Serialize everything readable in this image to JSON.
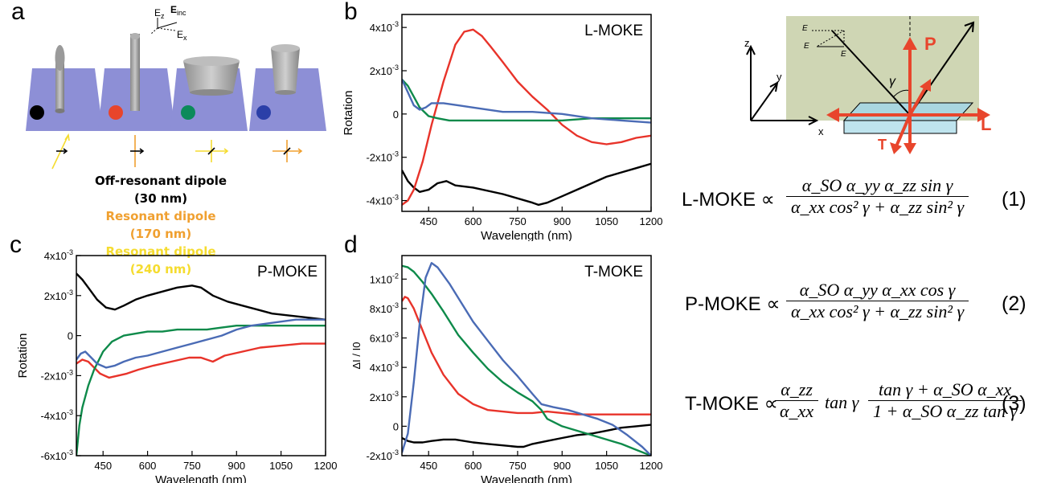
{
  "panels": {
    "a": "a",
    "b": "b",
    "c": "c",
    "d": "d"
  },
  "panel_a": {
    "axis_labels": {
      "ez": "E",
      "ez_sub": "z",
      "einc": "E",
      "einc_sub": "inc",
      "ex": "E",
      "ex_sub": "x"
    },
    "legend": [
      {
        "text": "Off-resonant dipole (30 nm)",
        "color": "#000000"
      },
      {
        "text": "Resonant dipole (170 nm)",
        "color": "#f0a030"
      },
      {
        "text": "Resonant dipole (240 nm)",
        "color": "#f5dc30"
      }
    ],
    "dot_colors": [
      "#000000",
      "#e8452c",
      "#0b8a5a",
      "#2b3fa8"
    ]
  },
  "geometry_diagram": {
    "axis_z": "z",
    "axis_y": "y",
    "axis_x": "x",
    "label_P": "P",
    "label_L": "L",
    "label_T": "T",
    "gamma": "γ",
    "vec_Ex": "E",
    "vec_E": "E",
    "vec_Ez": "E"
  },
  "equations": [
    {
      "lhs": "L-MOKE ∝",
      "numerator": "α_SO α_yy α_zz sin γ",
      "denominator": "α_xx cos² γ + α_zz sin² γ",
      "number": "(1)"
    },
    {
      "lhs": "P-MOKE ∝",
      "numerator": "α_SO α_yy α_xx cos γ",
      "denominator": "α_xx cos² γ + α_zz sin² γ",
      "number": "(2)"
    },
    {
      "lhs": "T-MOKE ∝",
      "numerator": "α_zz",
      "denominator": "α_xx",
      "mid": "tan γ",
      "numerator2": "tan γ + α_SO α_xx",
      "denominator2": "1 + α_SO α_zz tan γ",
      "number": "(3)"
    }
  ],
  "colors": {
    "black": "#000000",
    "red": "#e8332a",
    "green": "#0e8a4a",
    "blue": "#4a6bb5"
  },
  "chart_data": [
    {
      "id": "b",
      "type": "line",
      "title": "L-MOKE",
      "xlabel": "Wavelength (nm)",
      "ylabel": "Rotation",
      "xlim": [
        360,
        1200
      ],
      "ylim": [
        -0.0045,
        0.0046
      ],
      "xticks": [
        450,
        600,
        750,
        900,
        1050,
        1200
      ],
      "xtick_labels": [
        "450",
        "600",
        "750",
        "900",
        "1050",
        "1200"
      ],
      "yticks": [
        -0.004,
        -0.002,
        0,
        0.002,
        0.004
      ],
      "ytick_labels": [
        "-4x10-3",
        "-2x10-3",
        "0",
        "2x10-3",
        "4x10-3"
      ],
      "series": [
        {
          "color": "#000000",
          "x": [
            360,
            380,
            400,
            420,
            450,
            480,
            510,
            540,
            600,
            700,
            800,
            820,
            850,
            900,
            950,
            1000,
            1050,
            1100,
            1150,
            1200
          ],
          "y": [
            -0.0026,
            -0.0031,
            -0.0034,
            -0.0036,
            -0.0035,
            -0.0032,
            -0.0031,
            -0.0033,
            -0.0034,
            -0.0037,
            -0.0041,
            -0.0042,
            -0.0041,
            -0.0038,
            -0.0035,
            -0.0032,
            -0.0029,
            -0.0027,
            -0.0025,
            -0.0023
          ]
        },
        {
          "color": "#e8332a",
          "x": [
            360,
            380,
            400,
            430,
            460,
            500,
            540,
            570,
            600,
            630,
            660,
            700,
            750,
            800,
            850,
            900,
            950,
            1000,
            1050,
            1100,
            1150,
            1200
          ],
          "y": [
            -0.0042,
            -0.004,
            -0.0035,
            -0.0022,
            -0.0005,
            0.0015,
            0.0032,
            0.0038,
            0.0039,
            0.0036,
            0.0031,
            0.0024,
            0.0015,
            0.0008,
            0.0002,
            -0.0005,
            -0.001,
            -0.0013,
            -0.0014,
            -0.0013,
            -0.0011,
            -0.001
          ]
        },
        {
          "color": "#0e8a4a",
          "x": [
            360,
            380,
            400,
            420,
            450,
            480,
            520,
            600,
            700,
            800,
            900,
            1000,
            1100,
            1200
          ],
          "y": [
            0.0016,
            0.0013,
            0.0008,
            0.0003,
            -0.0001,
            -0.0002,
            -0.0003,
            -0.0003,
            -0.0003,
            -0.0003,
            -0.0003,
            -0.0002,
            -0.0002,
            -0.0002
          ]
        },
        {
          "color": "#4a6bb5",
          "x": [
            360,
            380,
            400,
            420,
            440,
            460,
            500,
            550,
            600,
            700,
            800,
            900,
            1000,
            1100,
            1200
          ],
          "y": [
            0.0016,
            0.001,
            0.0004,
            0.0002,
            0.0003,
            0.0005,
            0.0005,
            0.0004,
            0.0003,
            0.0001,
            0.0001,
            0,
            -0.0002,
            -0.0003,
            -0.0004
          ]
        }
      ]
    },
    {
      "id": "c",
      "type": "line",
      "title": "P-MOKE",
      "xlabel": "Wavelength (nm)",
      "ylabel": "Rotation",
      "xlim": [
        360,
        1200
      ],
      "ylim": [
        -0.006,
        0.004
      ],
      "xticks": [
        450,
        600,
        750,
        900,
        1050,
        1200
      ],
      "xtick_labels": [
        "450",
        "600",
        "750",
        "900",
        "1050",
        "1200"
      ],
      "yticks": [
        -0.006,
        -0.004,
        -0.002,
        0,
        0.002,
        0.004
      ],
      "ytick_labels": [
        "-6x10-3",
        "-4x10-3",
        "-2x10-3",
        "0",
        "2x10-3",
        "4x10-3"
      ],
      "series": [
        {
          "color": "#000000",
          "x": [
            360,
            380,
            400,
            430,
            460,
            490,
            520,
            560,
            600,
            650,
            700,
            750,
            780,
            820,
            870,
            920,
            970,
            1020,
            1080,
            1140,
            1200
          ],
          "y": [
            0.0031,
            0.0028,
            0.0024,
            0.0018,
            0.0014,
            0.0013,
            0.0015,
            0.0018,
            0.002,
            0.0022,
            0.0024,
            0.0025,
            0.0024,
            0.002,
            0.0017,
            0.0015,
            0.0013,
            0.0011,
            0.001,
            0.0009,
            0.0008
          ]
        },
        {
          "color": "#e8332a",
          "x": [
            360,
            380,
            400,
            420,
            440,
            470,
            500,
            530,
            570,
            620,
            680,
            740,
            780,
            820,
            860,
            920,
            980,
            1050,
            1120,
            1200
          ],
          "y": [
            -0.0014,
            -0.0012,
            -0.0013,
            -0.0016,
            -0.0019,
            -0.0021,
            -0.002,
            -0.0019,
            -0.0017,
            -0.0015,
            -0.0013,
            -0.0011,
            -0.0011,
            -0.0013,
            -0.001,
            -0.0008,
            -0.0006,
            -0.0005,
            -0.0004,
            -0.0004
          ]
        },
        {
          "color": "#0e8a4a",
          "x": [
            360,
            370,
            380,
            400,
            420,
            450,
            480,
            520,
            560,
            600,
            650,
            700,
            750,
            800,
            850,
            900,
            950,
            1000,
            1050,
            1100,
            1150,
            1200
          ],
          "y": [
            -0.006,
            -0.0045,
            -0.0036,
            -0.0025,
            -0.0017,
            -0.0008,
            -0.0003,
            0,
            0.0001,
            0.0002,
            0.0002,
            0.0003,
            0.0003,
            0.0003,
            0.0004,
            0.0005,
            0.0005,
            0.0005,
            0.0005,
            0.0005,
            0.0005,
            0.0005
          ]
        },
        {
          "color": "#4a6bb5",
          "x": [
            360,
            375,
            390,
            410,
            430,
            460,
            490,
            520,
            560,
            600,
            650,
            700,
            750,
            800,
            850,
            900,
            950,
            1000,
            1050,
            1100,
            1150,
            1200
          ],
          "y": [
            -0.0012,
            -0.0009,
            -0.0008,
            -0.0011,
            -0.0014,
            -0.0016,
            -0.0015,
            -0.0013,
            -0.0011,
            -0.001,
            -0.0008,
            -0.0006,
            -0.0004,
            -0.0002,
            0,
            0.0003,
            0.0005,
            0.0006,
            0.0007,
            0.0008,
            0.0008,
            0.0008
          ]
        }
      ]
    },
    {
      "id": "d",
      "type": "line",
      "title": "T-MOKE",
      "xlabel": "Wavelength (nm)",
      "ylabel": "ΔI / I0",
      "xlim": [
        360,
        1200
      ],
      "ylim": [
        -0.002,
        0.0116
      ],
      "xticks": [
        450,
        600,
        750,
        900,
        1050,
        1200
      ],
      "xtick_labels": [
        "450",
        "600",
        "750",
        "900",
        "1050",
        "1200"
      ],
      "yticks": [
        -0.002,
        0,
        0.002,
        0.004,
        0.006,
        0.008,
        0.01
      ],
      "ytick_labels": [
        "-2x10-3",
        "0",
        "2x10-3",
        "4x10-3",
        "6x10-3",
        "8x10-3",
        "1x10-2"
      ],
      "series": [
        {
          "color": "#000000",
          "x": [
            360,
            380,
            400,
            430,
            460,
            500,
            540,
            600,
            650,
            700,
            750,
            770,
            800,
            850,
            900,
            950,
            1000,
            1050,
            1100,
            1150,
            1200
          ],
          "y": [
            -0.0008,
            -0.001,
            -0.0011,
            -0.0011,
            -0.001,
            -0.0009,
            -0.0009,
            -0.0011,
            -0.0012,
            -0.0013,
            -0.0014,
            -0.0014,
            -0.0012,
            -0.001,
            -0.0008,
            -0.0006,
            -0.0005,
            -0.0003,
            -0.0001,
            0,
            0.0001
          ]
        },
        {
          "color": "#e8332a",
          "x": [
            360,
            370,
            380,
            400,
            430,
            460,
            500,
            550,
            600,
            650,
            700,
            750,
            800,
            850,
            900,
            950,
            1000,
            1050,
            1100,
            1150,
            1200
          ],
          "y": [
            0.0085,
            0.0088,
            0.0087,
            0.008,
            0.0065,
            0.005,
            0.0035,
            0.0022,
            0.0015,
            0.0011,
            0.001,
            0.0009,
            0.0009,
            0.001,
            0.0009,
            0.0008,
            0.0008,
            0.0008,
            0.0008,
            0.0008,
            0.0008
          ]
        },
        {
          "color": "#0e8a4a",
          "x": [
            360,
            380,
            400,
            430,
            460,
            500,
            550,
            600,
            650,
            700,
            750,
            800,
            830,
            850,
            900,
            950,
            1000,
            1050,
            1100,
            1150,
            1200
          ],
          "y": [
            0.0109,
            0.0108,
            0.0105,
            0.0098,
            0.009,
            0.0078,
            0.0062,
            0.005,
            0.0039,
            0.003,
            0.0023,
            0.0017,
            0.0011,
            0.0005,
            0,
            -0.0003,
            -0.0006,
            -0.0009,
            -0.0012,
            -0.0016,
            -0.002
          ]
        },
        {
          "color": "#4a6bb5",
          "x": [
            360,
            380,
            400,
            420,
            440,
            460,
            480,
            520,
            560,
            600,
            650,
            700,
            750,
            800,
            830,
            870,
            920,
            970,
            1020,
            1070,
            1120,
            1170,
            1200
          ],
          "y": [
            -0.0018,
            -0.0005,
            0.003,
            0.007,
            0.0101,
            0.0111,
            0.0108,
            0.0097,
            0.0084,
            0.0071,
            0.0058,
            0.0045,
            0.0034,
            0.0022,
            0.0015,
            0.0013,
            0.0011,
            0.0008,
            0.0005,
            0.0001,
            -0.0006,
            -0.0014,
            -0.002
          ]
        }
      ]
    }
  ]
}
